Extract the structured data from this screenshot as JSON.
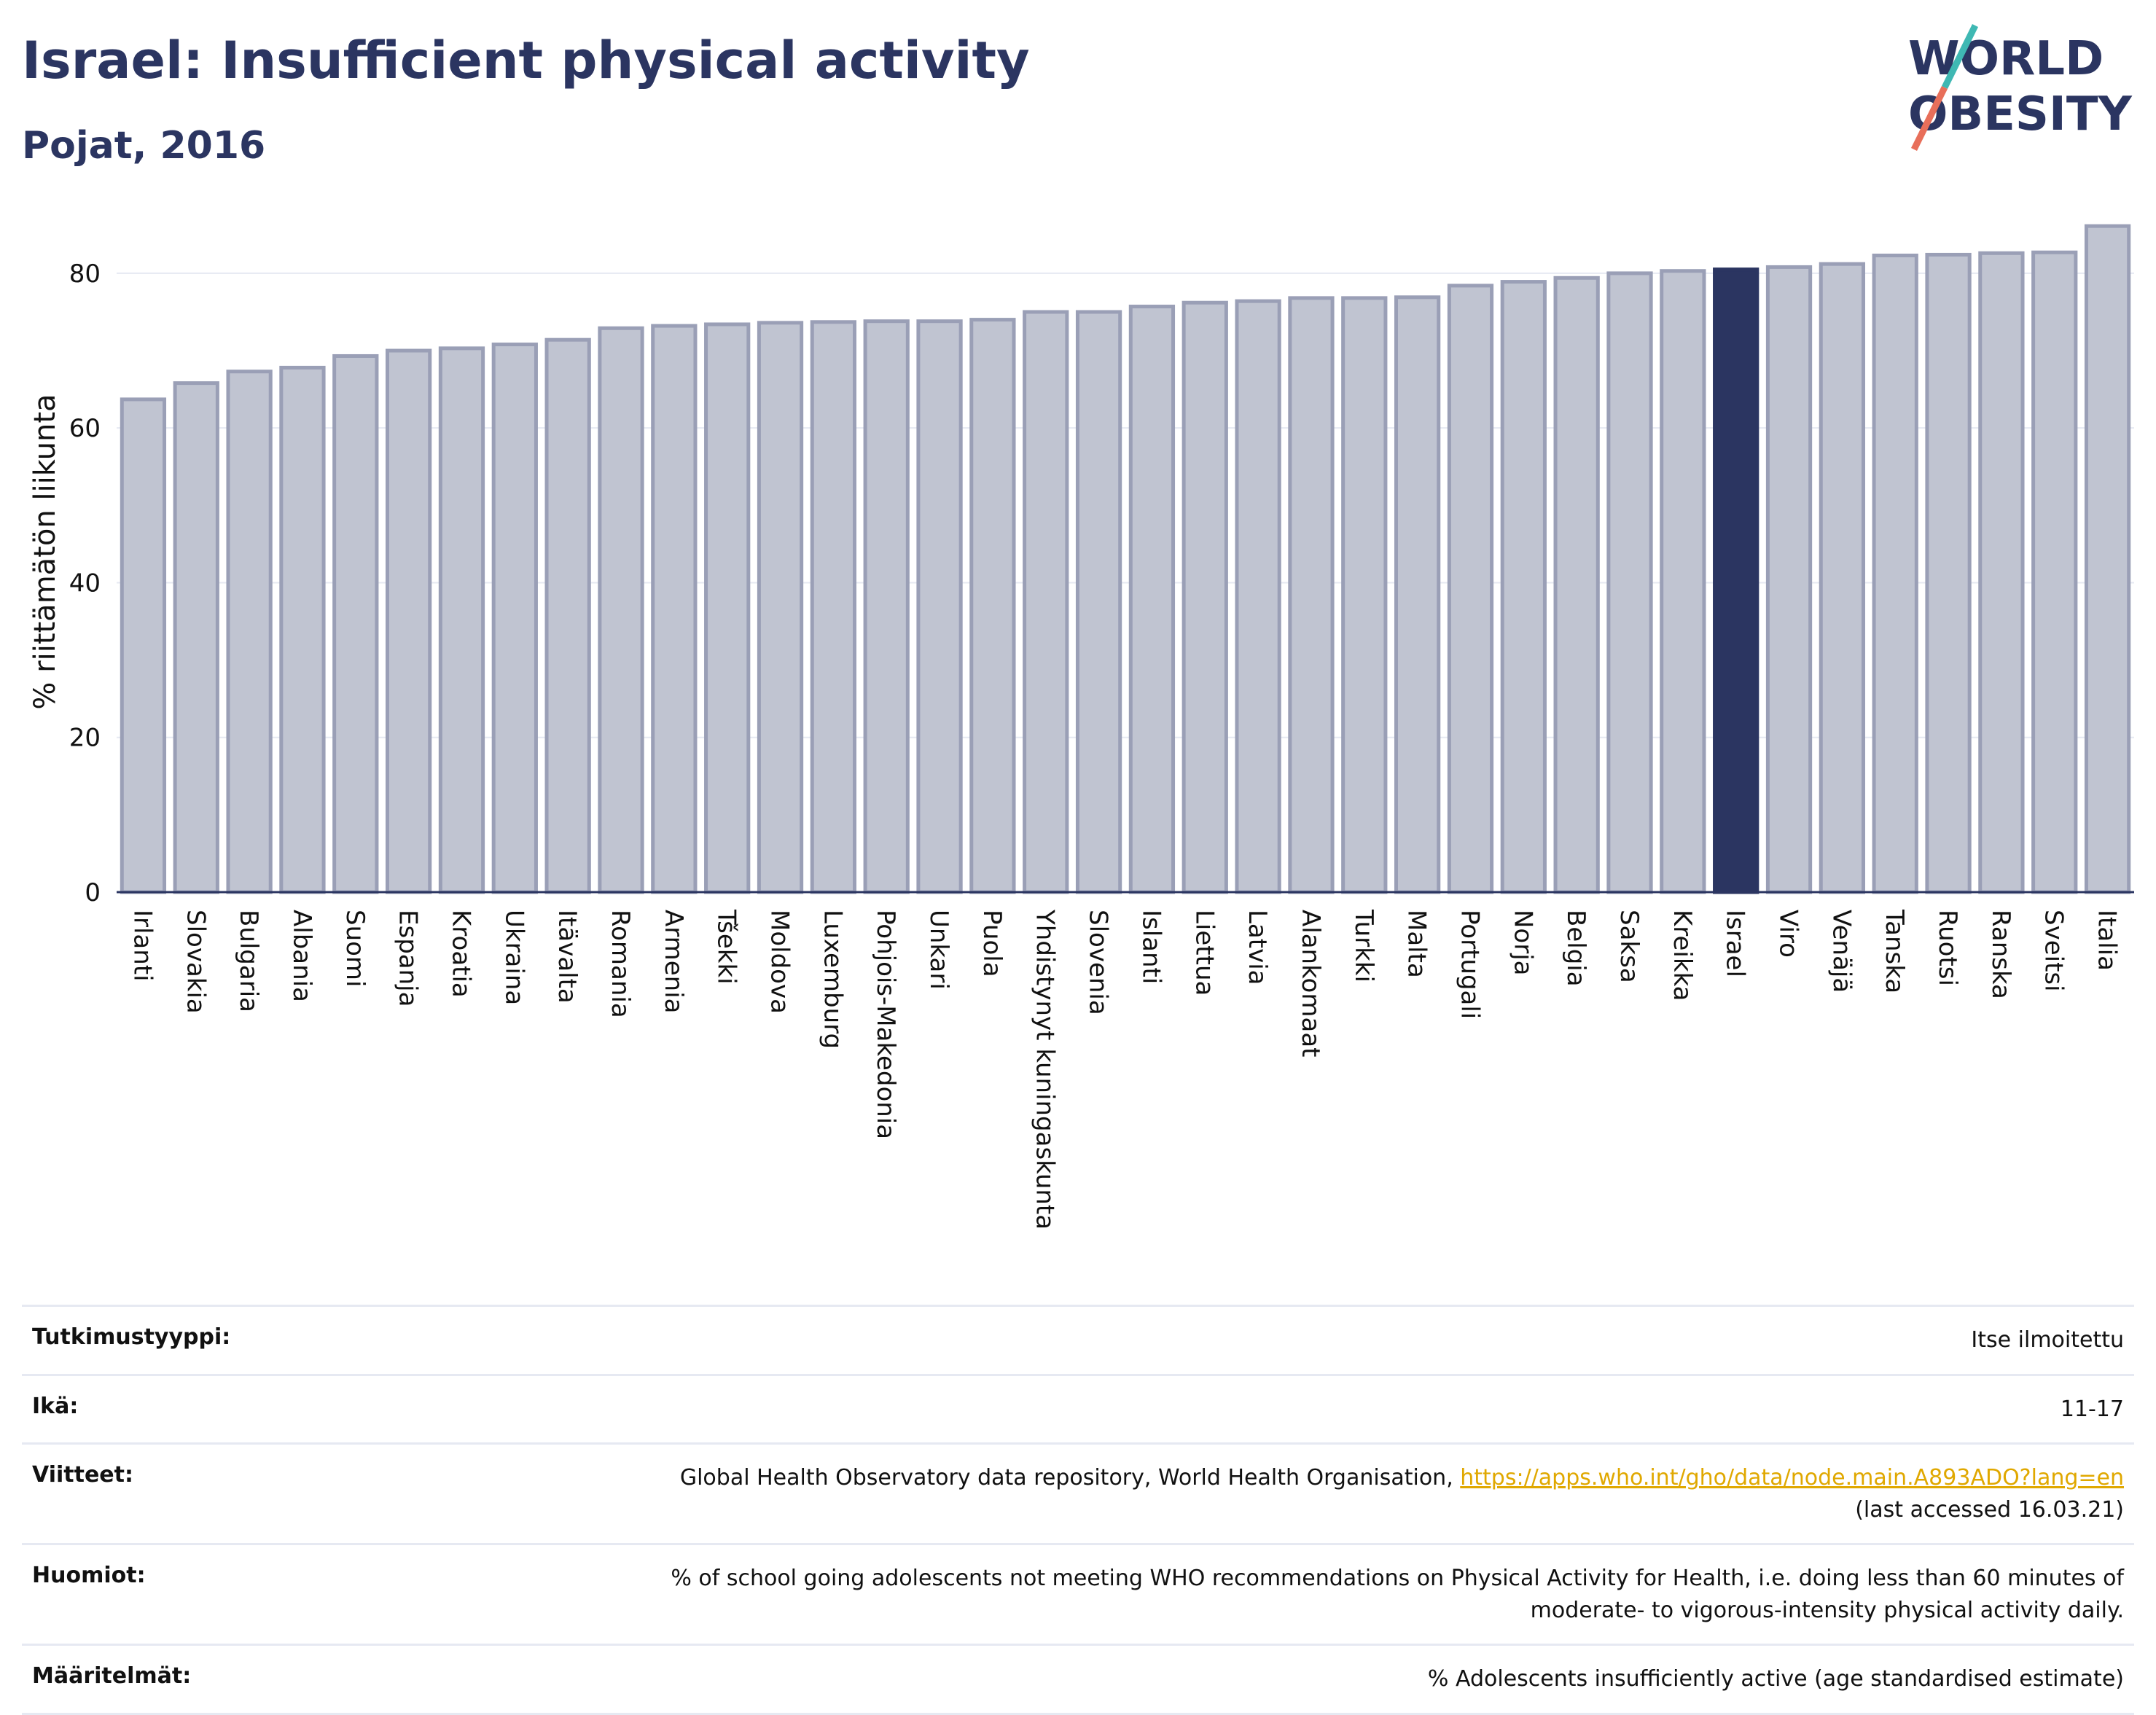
{
  "header": {
    "title": "Israel: Insufficient physical activity",
    "subtitle": "Pojat, 2016"
  },
  "logo": {
    "line1": "WORLD",
    "line2": "OBESITY",
    "text_color": "#2b3561",
    "slash_teal": "#3fb8b3",
    "slash_coral": "#e86f5a"
  },
  "colors": {
    "bar_fill": "#c0c4d1",
    "bar_stroke": "#9a9fb6",
    "highlight": "#2b3561",
    "grid": "#e6e9f2"
  },
  "chart_data": {
    "type": "bar",
    "title": "Israel: Insufficient physical activity",
    "subtitle": "Pojat, 2016",
    "ylabel": "% riittämätön liikunta",
    "xlabel": "",
    "ylim": [
      0,
      88
    ],
    "yticks": [
      0,
      20,
      40,
      60,
      80
    ],
    "grid": true,
    "highlight": "Israel",
    "categories": [
      "Irlanti",
      "Slovakia",
      "Bulgaria",
      "Albania",
      "Suomi",
      "Espanja",
      "Kroatia",
      "Ukraina",
      "Itävalta",
      "Romania",
      "Armenia",
      "Tšekki",
      "Moldova",
      "Luxemburg",
      "Pohjois-Makedonia",
      "Unkari",
      "Puola",
      "Yhdistynyt kuningaskunta",
      "Slovenia",
      "Islanti",
      "Liettua",
      "Latvia",
      "Alankomaat",
      "Turkki",
      "Malta",
      "Portugali",
      "Norja",
      "Belgia",
      "Saksa",
      "Kreikka",
      "Israel",
      "Viro",
      "Venäjä",
      "Tanska",
      "Ruotsi",
      "Ranska",
      "Sveitsi",
      "Italia"
    ],
    "values": [
      63.7,
      65.8,
      67.3,
      67.8,
      69.3,
      70.0,
      70.3,
      70.8,
      71.4,
      72.9,
      73.2,
      73.4,
      73.6,
      73.7,
      73.8,
      73.8,
      74.0,
      75.0,
      75.0,
      75.7,
      76.2,
      76.4,
      76.8,
      76.8,
      76.9,
      78.4,
      78.9,
      79.4,
      80.0,
      80.3,
      80.5,
      80.8,
      81.2,
      82.3,
      82.4,
      82.6,
      82.7,
      86.1
    ]
  },
  "table": {
    "rows": [
      {
        "key": "Tutkimustyyppi:",
        "value": "Itse ilmoitettu"
      },
      {
        "key": "Ikä:",
        "value": "11-17"
      },
      {
        "key": "Viitteet:",
        "value": "Global Health Observatory data repository, World Health Organisation, ",
        "link": "https://apps.who.int/gho/data/node.main.A893ADO?lang=en",
        "value2": "(last accessed 16.03.21)"
      },
      {
        "key": "Huomiot:",
        "value": "% of school going adolescents not meeting WHO recommendations on Physical Activity for Health, i.e. doing less than 60 minutes of",
        "value2": "moderate- to vigorous-intensity physical activity daily."
      },
      {
        "key": "Määritelmät:",
        "value": "% Adolescents insufficiently active (age standardised estimate)"
      }
    ]
  }
}
